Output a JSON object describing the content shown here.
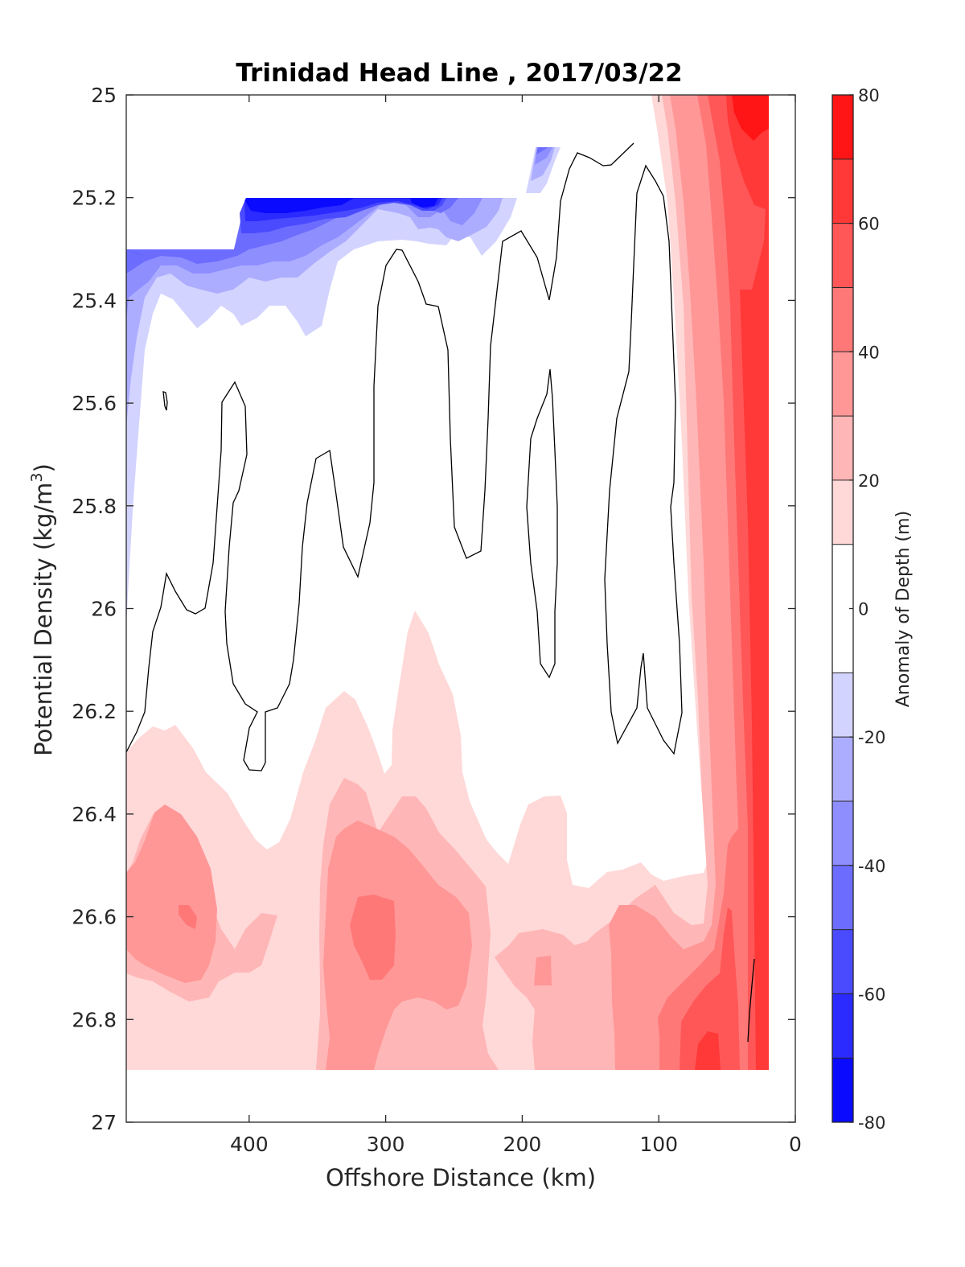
{
  "chart_data": {
    "type": "contour",
    "title": "Trinidad Head Line , 2017/03/22",
    "xlabel": "Offshore Distance (km)",
    "ylabel_main": "Potential Density (kg/m",
    "ylabel_sup": "3",
    "ylabel_end": ")",
    "xlim": [
      490,
      0
    ],
    "ylim": [
      27,
      25
    ],
    "x_ticks": [
      400,
      300,
      200,
      100,
      0
    ],
    "y_ticks": [
      25,
      25.2,
      25.4,
      25.6,
      25.8,
      26,
      26.2,
      26.4,
      26.6,
      26.8,
      27
    ],
    "x_tick_labels": [
      "400",
      "300",
      "200",
      "100",
      "0"
    ],
    "y_tick_labels": [
      "25",
      "25.2",
      "25.4",
      "25.6",
      "25.8",
      "26",
      "26.2",
      "26.4",
      "26.6",
      "26.8",
      "27"
    ],
    "colorbar": {
      "label": "Anomaly of Depth (m)",
      "range": [
        -80,
        80
      ],
      "levels": [
        -80,
        -70,
        -60,
        -50,
        -40,
        -30,
        -20,
        -10,
        10,
        20,
        30,
        40,
        50,
        60,
        70,
        80
      ],
      "tick_values": [
        -80,
        -60,
        -40,
        -20,
        0,
        20,
        40,
        60,
        80
      ],
      "tick_labels": [
        "-80",
        "-60",
        "-40",
        "-20",
        "0",
        "20",
        "40",
        "60",
        "80"
      ],
      "colors": [
        "#0a0aff",
        "#2b2bff",
        "#4a4aff",
        "#6c6cff",
        "#8e8eff",
        "#adadff",
        "#d3d3ff",
        "#ffffff",
        "#ffd8d8",
        "#ffb6b6",
        "#ff9797",
        "#ff7878",
        "#ff5757",
        "#ff3838",
        "#ff1515"
      ]
    },
    "regions": [
      {
        "level": 10,
        "color": "#ffd8d8",
        "points": [
          [
            490,
            26.28
          ],
          [
            470,
            26.2
          ],
          [
            458,
            26.15
          ],
          [
            450,
            26.1
          ],
          [
            440,
            26.05
          ],
          [
            425,
            26.0
          ],
          [
            410,
            26.0
          ],
          [
            395,
            26.0
          ],
          [
            380,
            26.0
          ],
          [
            365,
            26.0
          ],
          [
            350,
            26.0
          ],
          [
            335,
            26.0
          ],
          [
            320,
            26.0
          ],
          [
            300,
            26.0
          ],
          [
            280,
            26.0
          ],
          [
            260,
            26.0
          ],
          [
            240,
            26.0
          ],
          [
            220,
            26.0
          ],
          [
            200,
            26.0
          ],
          [
            180,
            26.0
          ],
          [
            160,
            26.0
          ],
          [
            140,
            26.0
          ],
          [
            120,
            26.0
          ],
          [
            100,
            26.0
          ],
          [
            88,
            26.0
          ],
          [
            85,
            25.4
          ],
          [
            86,
            25.0
          ],
          [
            20,
            25.0
          ],
          [
            20,
            26.9
          ],
          [
            370,
            26.9
          ],
          [
            370,
            26.9
          ],
          [
            490,
            26.9
          ]
        ]
      },
      {
        "level": -10,
        "color": "#d3d3ff",
        "points": [
          [
            490,
            25.3
          ],
          [
            410,
            25.3
          ],
          [
            400,
            25.2
          ],
          [
            210,
            25.2
          ],
          [
            200,
            25.18
          ],
          [
            195,
            25.1
          ],
          [
            180,
            25.1
          ],
          [
            175,
            25.15
          ],
          [
            190,
            25.22
          ],
          [
            205,
            25.28
          ],
          [
            220,
            25.31
          ],
          [
            232,
            25.28
          ],
          [
            248,
            25.27
          ],
          [
            265,
            25.31
          ],
          [
            290,
            25.25
          ],
          [
            330,
            25.3
          ],
          [
            360,
            25.3
          ],
          [
            375,
            25.32
          ],
          [
            385,
            25.37
          ],
          [
            400,
            25.35
          ],
          [
            410,
            25.36
          ],
          [
            420,
            25.43
          ],
          [
            430,
            25.4
          ],
          [
            440,
            25.36
          ],
          [
            450,
            25.42
          ],
          [
            465,
            25.4
          ],
          [
            478,
            25.48
          ],
          [
            485,
            25.66
          ],
          [
            490,
            25.85
          ]
        ]
      }
    ]
  }
}
